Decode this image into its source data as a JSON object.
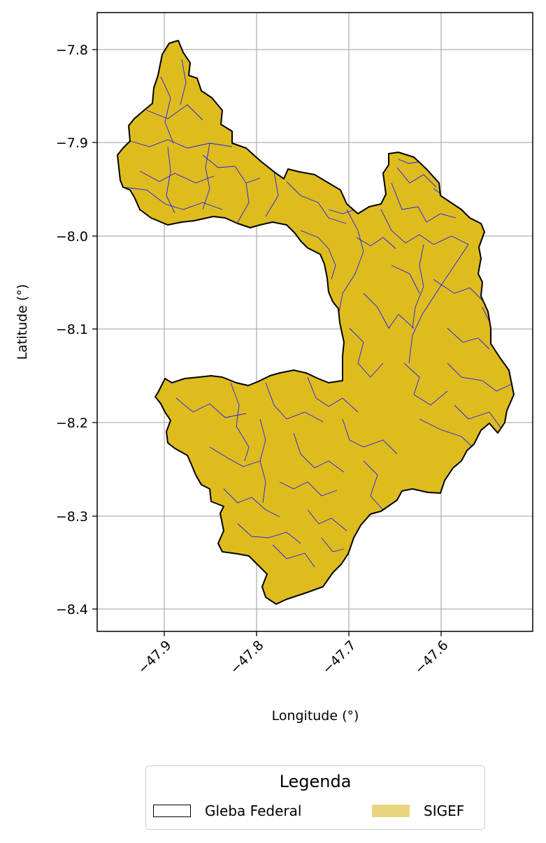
{
  "map": {
    "xlabel": "Longitude (°)",
    "ylabel": "Latitude (°)",
    "x_ticks": [
      "−47.9",
      "−47.8",
      "−47.7",
      "−47.6"
    ],
    "y_ticks": [
      "−7.8",
      "−7.9",
      "−8.0",
      "−8.1",
      "−8.2",
      "−8.3",
      "−8.4"
    ],
    "x_tick_values": [
      -47.9,
      -47.8,
      -47.7,
      -47.6
    ],
    "y_tick_values": [
      -7.8,
      -7.9,
      -8.0,
      -8.1,
      -8.2,
      -8.3,
      -8.4
    ],
    "xlim": [
      -47.975,
      -47.505
    ],
    "ylim": [
      -8.425,
      -7.76
    ],
    "grid": true,
    "colors": {
      "gleba_outline": "#000000",
      "sigef_fill": "#dfbc1e",
      "parcel_lines": "#1a1aff",
      "grid": "#b0b0b0"
    }
  },
  "legend": {
    "title": "Legenda",
    "items": [
      {
        "label": "Gleba Federal",
        "style": "outline"
      },
      {
        "label": "SIGEF",
        "style": "fill"
      }
    ]
  }
}
